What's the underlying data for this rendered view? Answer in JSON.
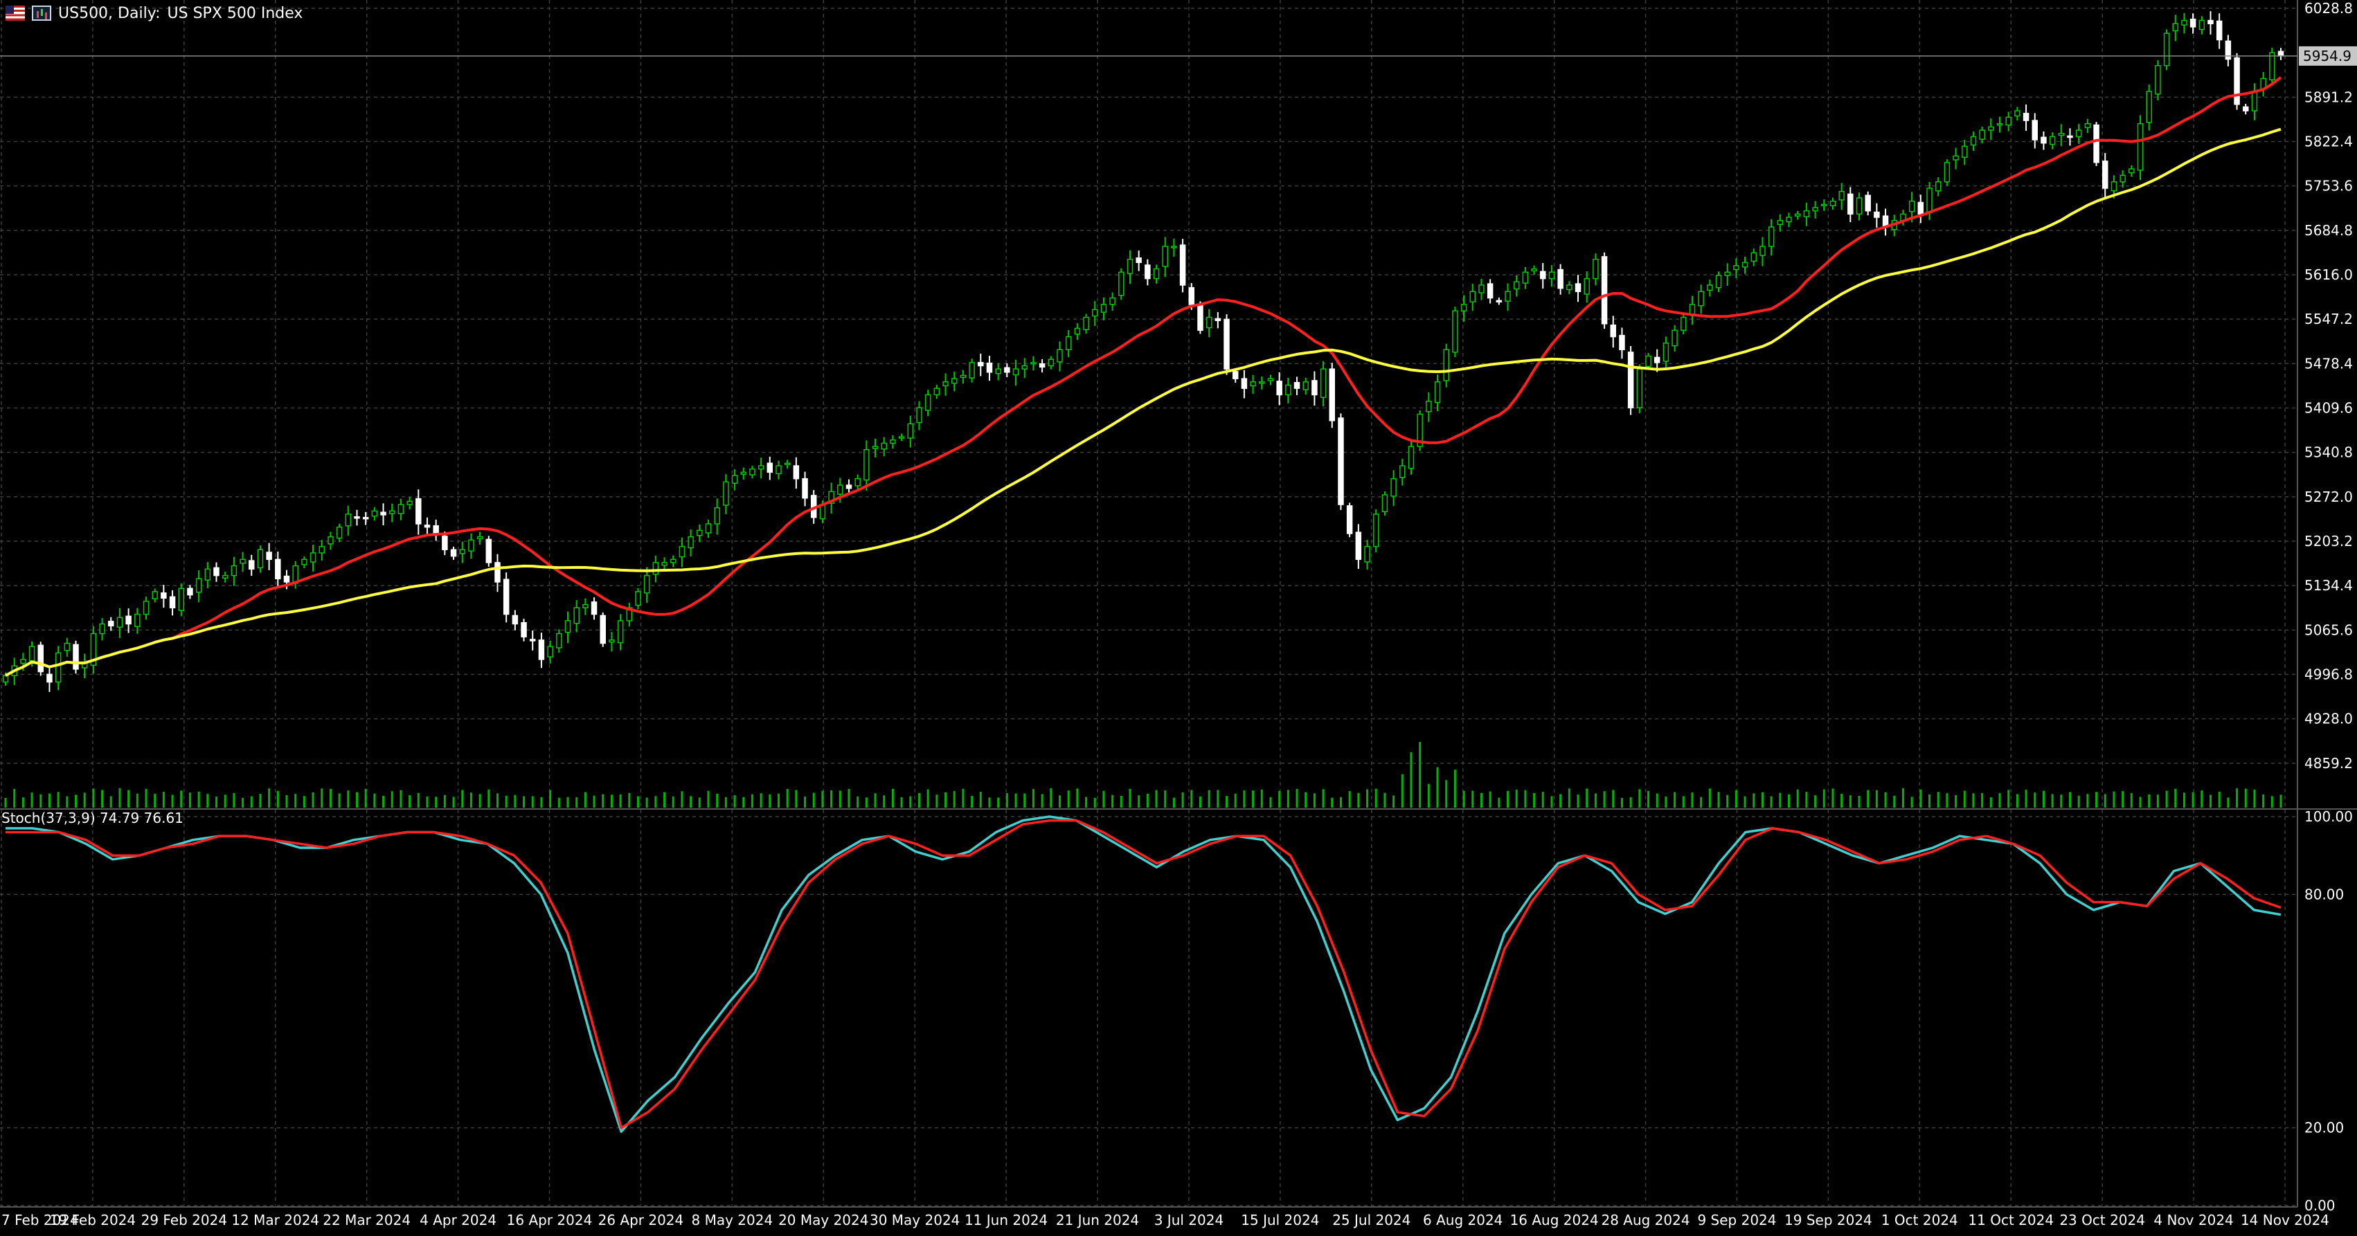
{
  "header": {
    "symbol": "US500, Daily:",
    "description": "US SPX 500 Index",
    "icons": [
      "flag-icon",
      "chart-icon"
    ]
  },
  "colors": {
    "background": "#000000",
    "grid": "#3d3d3d",
    "bull_candle": "#00c800",
    "bear_candle": "#ffffff",
    "ma_fast": "#ff2020",
    "ma_slow": "#ffff40",
    "volume": "#00b400",
    "stoch_main": "#40d0d0",
    "stoch_signal": "#ff2020",
    "axis_text": "#ffffff",
    "price_marker_bg": "#c8c8c8"
  },
  "chart_data": [
    {
      "type": "candlestick",
      "title": "US500, Daily: US SPX 500 Index",
      "x_ticks": [
        "7 Feb 2024",
        "19 Feb 2024",
        "29 Feb 2024",
        "12 Mar 2024",
        "22 Mar 2024",
        "4 Apr 2024",
        "16 Apr 2024",
        "26 Apr 2024",
        "8 May 2024",
        "20 May 2024",
        "30 May 2024",
        "11 Jun 2024",
        "21 Jun 2024",
        "3 Jul 2024",
        "15 Jul 2024",
        "25 Jul 2024",
        "6 Aug 2024",
        "16 Aug 2024",
        "28 Aug 2024",
        "9 Sep 2024",
        "19 Sep 2024",
        "1 Oct 2024",
        "11 Oct 2024",
        "23 Oct 2024",
        "4 Nov 2024",
        "14 Nov 2024"
      ],
      "y_ticks": [
        "6028.8",
        "5891.2",
        "5822.4",
        "5753.6",
        "5684.8",
        "5616.0",
        "5547.2",
        "5478.4",
        "5409.6",
        "5340.8",
        "5272.0",
        "5203.2",
        "5134.4",
        "5065.6",
        "4996.8",
        "4928.0",
        "4859.2"
      ],
      "ylim": [
        4790.4,
        6028.8
      ],
      "current_price_label": "5954.9",
      "current_price": 5954.9,
      "grid": true,
      "close": [
        4995,
        5010,
        5020,
        5040,
        5001,
        4985,
        5030,
        5045,
        5005,
        5015,
        5060,
        5075,
        5072,
        5085,
        5075,
        5090,
        5110,
        5125,
        5115,
        5100,
        5130,
        5120,
        5145,
        5160,
        5150,
        5150,
        5165,
        5175,
        5160,
        5190,
        5175,
        5145,
        5140,
        5165,
        5175,
        5185,
        5195,
        5210,
        5225,
        5245,
        5240,
        5238,
        5250,
        5244,
        5250,
        5260,
        5265,
        5230,
        5225,
        5215,
        5190,
        5180,
        5190,
        5205,
        5210,
        5170,
        5140,
        5090,
        5075,
        5055,
        5050,
        5020,
        5040,
        5060,
        5080,
        5100,
        5105,
        5090,
        5045,
        5050,
        5080,
        5100,
        5125,
        5150,
        5170,
        5170,
        5175,
        5195,
        5210,
        5220,
        5230,
        5255,
        5295,
        5305,
        5310,
        5315,
        5320,
        5310,
        5320,
        5324,
        5300,
        5270,
        5240,
        5260,
        5280,
        5290,
        5285,
        5300,
        5345,
        5350,
        5355,
        5360,
        5365,
        5385,
        5410,
        5430,
        5440,
        5450,
        5455,
        5460,
        5480,
        5475,
        5465,
        5470,
        5465,
        5470,
        5475,
        5480,
        5473,
        5485,
        5500,
        5520,
        5533,
        5550,
        5562,
        5570,
        5580,
        5620,
        5640,
        5635,
        5610,
        5625,
        5660,
        5660,
        5600,
        5570,
        5530,
        5550,
        5545,
        5470,
        5455,
        5440,
        5450,
        5450,
        5455,
        5430,
        5445,
        5440,
        5450,
        5430,
        5470,
        5390,
        5260,
        5215,
        5175,
        5195,
        5245,
        5275,
        5300,
        5320,
        5350,
        5400,
        5420,
        5450,
        5500,
        5560,
        5570,
        5590,
        5600,
        5580,
        5575,
        5590,
        5605,
        5620,
        5625,
        5610,
        5620,
        5595,
        5600,
        5590,
        5610,
        5640,
        5540,
        5520,
        5500,
        5410,
        5470,
        5490,
        5480,
        5510,
        5530,
        5550,
        5570,
        5590,
        5600,
        5615,
        5620,
        5630,
        5635,
        5650,
        5660,
        5690,
        5700,
        5705,
        5710,
        5715,
        5720,
        5725,
        5730,
        5745,
        5710,
        5735,
        5715,
        5705,
        5690,
        5700,
        5710,
        5730,
        5710,
        5750,
        5760,
        5790,
        5800,
        5815,
        5830,
        5840,
        5845,
        5850,
        5860,
        5870,
        5855,
        5825,
        5820,
        5830,
        5835,
        5830,
        5840,
        5850,
        5790,
        5750,
        5760,
        5770,
        5780,
        5850,
        5900,
        5940,
        5990,
        6005,
        6010,
        6000,
        6010,
        6005,
        5980,
        5950,
        5880,
        5870,
        5900,
        5920,
        5960,
        5955
      ]
    },
    {
      "type": "line",
      "ylim": [
        0,
        100
      ],
      "y_ticks": [
        "100.00",
        "80.00",
        "20.00",
        "0.00"
      ],
      "indicator_label": "Stoch(37,3,9) 74.79 76.61",
      "series": [
        {
          "name": "",
          "values": [
            97,
            97,
            96,
            93,
            89,
            90,
            92,
            94,
            95,
            95,
            94,
            92,
            92,
            94,
            95,
            96,
            96,
            94,
            93,
            88,
            80,
            65,
            40,
            19,
            27,
            33,
            43,
            52,
            60,
            76,
            85,
            90,
            94,
            95,
            91,
            89,
            91,
            96,
            99,
            100,
            99,
            95,
            91,
            87,
            91,
            94,
            95,
            94,
            87,
            73,
            55,
            35,
            22,
            25,
            33,
            50,
            70,
            80,
            88,
            90,
            86,
            78,
            75,
            78,
            88,
            96,
            97,
            96,
            93,
            90,
            88,
            90,
            92,
            95,
            94,
            93,
            88,
            80,
            76,
            78,
            77,
            86,
            88,
            82,
            76,
            74.79
          ]
        },
        {
          "name": "",
          "values": [
            96,
            96,
            96,
            94,
            90,
            90,
            92,
            93,
            95,
            95,
            94,
            93,
            92,
            93,
            95,
            96,
            96,
            95,
            93,
            90,
            83,
            70,
            45,
            20,
            24,
            30,
            40,
            49,
            58,
            72,
            83,
            89,
            93,
            95,
            93,
            90,
            90,
            94,
            98,
            99,
            99,
            96,
            92,
            88,
            90,
            93,
            95,
            95,
            90,
            77,
            60,
            40,
            24,
            23,
            30,
            45,
            66,
            78,
            87,
            90,
            88,
            80,
            76,
            77,
            85,
            94,
            97,
            96,
            94,
            91,
            88,
            89,
            91,
            94,
            95,
            93,
            90,
            83,
            78,
            78,
            77,
            84,
            88,
            84,
            79,
            76.61
          ]
        }
      ]
    }
  ]
}
